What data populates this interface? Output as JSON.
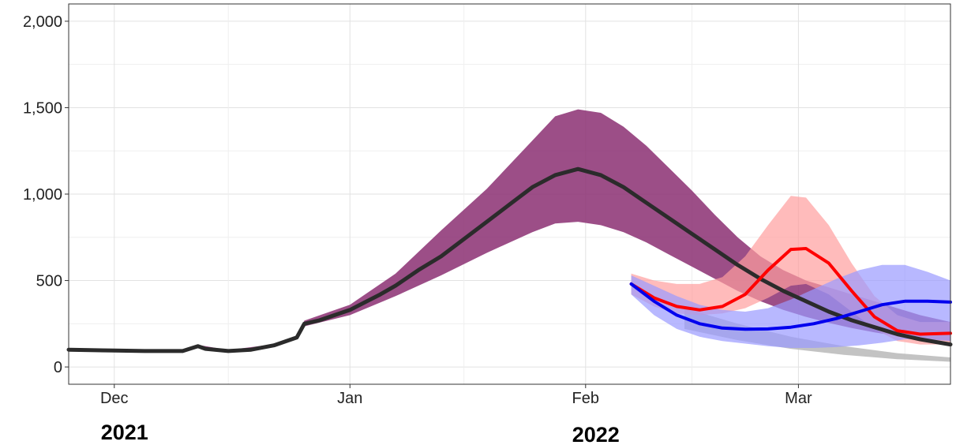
{
  "chart_data": {
    "type": "area",
    "title": "",
    "xlabel": "",
    "ylabel": "",
    "x_range": [
      "2021-11-25",
      "2022-03-21"
    ],
    "ylim": [
      -100,
      2100
    ],
    "y_ticks": [
      0,
      500,
      1000,
      1500,
      2000
    ],
    "y_tick_labels": [
      "0",
      "500",
      "1,000",
      "1,500",
      "2,000"
    ],
    "x_ticks": [
      {
        "date": "2021-12-01",
        "label": "Dec"
      },
      {
        "date": "2022-01-01",
        "label": "Jan"
      },
      {
        "date": "2022-02-01",
        "label": "Feb"
      },
      {
        "date": "2022-03-01",
        "label": "Mar"
      }
    ],
    "year_labels": [
      {
        "date": "2021-12-01",
        "label": "2021"
      },
      {
        "date": "2022-02-01",
        "label": "2022"
      }
    ],
    "grid": true,
    "legend": "none",
    "colors": {
      "purple_band": "#8b2f72",
      "purple_band_light": "#a8498e",
      "gray_band": "#b8b8b8",
      "red_band": "#ff9e9e",
      "blue_band": "#9a9aff",
      "black_line": "#2b2b2b",
      "red_line": "#ff0000",
      "blue_line": "#0000ee"
    },
    "series": [
      {
        "color": "#2b2b2b",
        "points": [
          [
            "2021-11-25",
            100
          ],
          [
            "2021-12-01",
            95
          ],
          [
            "2021-12-05",
            92
          ],
          [
            "2021-12-10",
            92
          ],
          [
            "2021-12-12",
            120
          ],
          [
            "2021-12-13",
            105
          ],
          [
            "2021-12-16",
            92
          ],
          [
            "2021-12-19",
            100
          ],
          [
            "2021-12-22",
            125
          ],
          [
            "2021-12-25",
            170
          ],
          [
            "2021-12-26",
            250
          ],
          [
            "2021-12-28",
            270
          ],
          [
            "2022-01-01",
            330
          ],
          [
            "2022-01-05",
            420
          ],
          [
            "2022-01-07",
            470
          ],
          [
            "2022-01-10",
            560
          ],
          [
            "2022-01-13",
            640
          ],
          [
            "2022-01-16",
            740
          ],
          [
            "2022-01-19",
            840
          ],
          [
            "2022-01-22",
            940
          ],
          [
            "2022-01-25",
            1040
          ],
          [
            "2022-01-28",
            1110
          ],
          [
            "2022-01-31",
            1145
          ],
          [
            "2022-02-03",
            1110
          ],
          [
            "2022-02-06",
            1040
          ],
          [
            "2022-02-09",
            950
          ],
          [
            "2022-02-12",
            860
          ],
          [
            "2022-02-15",
            770
          ],
          [
            "2022-02-18",
            680
          ],
          [
            "2022-02-21",
            590
          ],
          [
            "2022-02-24",
            510
          ],
          [
            "2022-02-27",
            440
          ],
          [
            "2022-03-02",
            380
          ],
          [
            "2022-03-05",
            320
          ],
          [
            "2022-03-08",
            270
          ],
          [
            "2022-03-11",
            230
          ],
          [
            "2022-03-14",
            190
          ],
          [
            "2022-03-17",
            160
          ],
          [
            "2022-03-21",
            130
          ]
        ]
      },
      {
        "color": "#ff0000",
        "points": [
          [
            "2022-02-07",
            480
          ],
          [
            "2022-02-10",
            400
          ],
          [
            "2022-02-13",
            350
          ],
          [
            "2022-02-16",
            330
          ],
          [
            "2022-02-19",
            350
          ],
          [
            "2022-02-22",
            420
          ],
          [
            "2022-02-25",
            560
          ],
          [
            "2022-02-28",
            680
          ],
          [
            "2022-03-02",
            685
          ],
          [
            "2022-03-05",
            600
          ],
          [
            "2022-03-08",
            440
          ],
          [
            "2022-03-11",
            290
          ],
          [
            "2022-03-14",
            210
          ],
          [
            "2022-03-17",
            190
          ],
          [
            "2022-03-21",
            195
          ]
        ]
      },
      {
        "color": "#0000ee",
        "points": [
          [
            "2022-02-07",
            480
          ],
          [
            "2022-02-10",
            380
          ],
          [
            "2022-02-13",
            300
          ],
          [
            "2022-02-16",
            250
          ],
          [
            "2022-02-19",
            225
          ],
          [
            "2022-02-22",
            218
          ],
          [
            "2022-02-25",
            220
          ],
          [
            "2022-02-28",
            230
          ],
          [
            "2022-03-03",
            250
          ],
          [
            "2022-03-06",
            280
          ],
          [
            "2022-03-09",
            320
          ],
          [
            "2022-03-12",
            360
          ],
          [
            "2022-03-15",
            380
          ],
          [
            "2022-03-18",
            380
          ],
          [
            "2022-03-21",
            375
          ]
        ]
      }
    ],
    "bands": [
      {
        "color": "#8b2f72",
        "x": [
          "2021-11-25",
          "2021-12-01",
          "2021-12-10",
          "2021-12-12",
          "2021-12-16",
          "2021-12-22",
          "2021-12-25",
          "2021-12-26",
          "2022-01-01",
          "2022-01-07",
          "2022-01-13",
          "2022-01-19",
          "2022-01-25",
          "2022-01-28",
          "2022-01-31",
          "2022-02-03",
          "2022-02-06",
          "2022-02-09",
          "2022-02-12",
          "2022-02-15",
          "2022-02-18",
          "2022-02-21",
          "2022-02-24",
          "2022-02-27",
          "2022-03-02",
          "2022-03-05",
          "2022-03-08",
          "2022-03-11",
          "2022-03-14",
          "2022-03-17",
          "2022-03-21"
        ],
        "lower": [
          95,
          90,
          88,
          112,
          88,
          118,
          162,
          235,
          300,
          410,
          530,
          660,
          780,
          830,
          840,
          820,
          780,
          720,
          650,
          580,
          510,
          440,
          380,
          330,
          290,
          255,
          225,
          200,
          180,
          165,
          150
        ],
        "upper": [
          105,
          100,
          98,
          128,
          98,
          132,
          178,
          268,
          360,
          540,
          790,
          1030,
          1310,
          1450,
          1490,
          1470,
          1390,
          1280,
          1150,
          1020,
          880,
          750,
          640,
          560,
          500,
          460,
          420,
          380,
          340,
          300,
          260
        ]
      },
      {
        "color": "#b8b8b8",
        "x": [
          "2022-02-14",
          "2022-02-21",
          "2022-02-28",
          "2022-03-07",
          "2022-03-14",
          "2022-03-21"
        ],
        "lower": [
          220,
          155,
          105,
          70,
          45,
          30
        ],
        "upper": [
          340,
          250,
          175,
          120,
          80,
          55
        ]
      },
      {
        "color": "#ff9e9e",
        "x": [
          "2022-02-07",
          "2022-02-10",
          "2022-02-13",
          "2022-02-16",
          "2022-02-19",
          "2022-02-22",
          "2022-02-25",
          "2022-02-28",
          "2022-03-02",
          "2022-03-05",
          "2022-03-08",
          "2022-03-11",
          "2022-03-14",
          "2022-03-17",
          "2022-03-21"
        ],
        "lower": [
          420,
          350,
          310,
          300,
          310,
          340,
          400,
          470,
          480,
          420,
          320,
          220,
          150,
          130,
          130
        ],
        "upper": [
          540,
          500,
          480,
          480,
          520,
          640,
          820,
          990,
          980,
          820,
          600,
          410,
          300,
          260,
          260
        ]
      },
      {
        "color": "#9a9aff",
        "x": [
          "2022-02-07",
          "2022-02-10",
          "2022-02-13",
          "2022-02-16",
          "2022-02-19",
          "2022-02-22",
          "2022-02-25",
          "2022-02-28",
          "2022-03-03",
          "2022-03-06",
          "2022-03-09",
          "2022-03-12",
          "2022-03-15",
          "2022-03-18",
          "2022-03-21"
        ],
        "lower": [
          420,
          300,
          220,
          175,
          150,
          135,
          120,
          110,
          110,
          115,
          125,
          140,
          160,
          160,
          150
        ],
        "upper": [
          530,
          470,
          410,
          360,
          330,
          320,
          340,
          390,
          450,
          510,
          560,
          590,
          590,
          550,
          500
        ]
      }
    ]
  }
}
